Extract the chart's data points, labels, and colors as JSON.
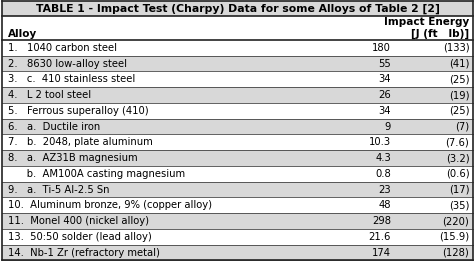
{
  "title": "TABLE 1 - Impact Test (Charpy) Data for some Alloys of Table 2 [2]",
  "col1_header": "Alloy",
  "col2_header_line1": "Impact Energy",
  "col2_header_line2": "[J (ft   lb)]",
  "rows": [
    {
      "label": "1.   1040 carbon steel",
      "j": "180",
      "ftlb": "(133)"
    },
    {
      "label": "2.   8630 low-alloy steel",
      "j": "55",
      "ftlb": "(41)"
    },
    {
      "label": "3.   c.  410 stainless steel",
      "j": "34",
      "ftlb": "(25)"
    },
    {
      "label": "4.   L 2 tool steel",
      "j": "26",
      "ftlb": "(19)"
    },
    {
      "label": "5.   Ferrous superalloy (410)",
      "j": "34",
      "ftlb": "(25)"
    },
    {
      "label": "6.   a.  Ductile iron",
      "j": "9",
      "ftlb": "(7)"
    },
    {
      "label": "7.   b.  2048, plate aluminum",
      "j": "10.3",
      "ftlb": "(7.6)"
    },
    {
      "label": "8.   a.  AZ31B magnesium",
      "j": "4.3",
      "ftlb": "(3.2)"
    },
    {
      "label": "      b.  AM100A casting magnesium",
      "j": "0.8",
      "ftlb": "(0.6)"
    },
    {
      "label": "9.   a.  Ti-5 Al-2.5 Sn",
      "j": "23",
      "ftlb": "(17)"
    },
    {
      "label": "10.  Aluminum bronze, 9% (copper alloy)",
      "j": "48",
      "ftlb": "(35)"
    },
    {
      "label": "11.  Monel 400 (nickel alloy)",
      "j": "298",
      "ftlb": "(220)"
    },
    {
      "label": "13.  50:50 solder (lead alloy)",
      "j": "21.6",
      "ftlb": "(15.9)"
    },
    {
      "label": "14.  Nb-1 Zr (refractory metal)",
      "j": "174",
      "ftlb": "(128)"
    }
  ],
  "bg_white": "#ffffff",
  "bg_gray": "#d8d8d8",
  "bg_title": "#d0d0d0",
  "border_color": "#222222",
  "text_color": "#000000",
  "font_size": 7.2,
  "title_font_size": 7.8,
  "header_font_size": 7.5,
  "figsize": [
    4.74,
    2.61
  ],
  "dpi": 100
}
